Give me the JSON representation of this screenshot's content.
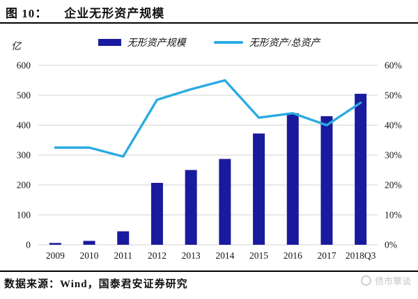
{
  "title": {
    "prefix": "图 10：",
    "text": "企业无形资产规模"
  },
  "unit_label": "亿",
  "source": "数据来源：Wind，国泰君安证券研究",
  "watermark": "债市覃谈",
  "colors": {
    "bar": "#1a1a9e",
    "line": "#29abe2",
    "grid": "#d9d9d9",
    "text": "#141414",
    "watermark": "#c6c6c6"
  },
  "chart_data": {
    "type": "bar",
    "title": "企业无形资产规模",
    "categories": [
      "2009",
      "2010",
      "2011",
      "2012",
      "2013",
      "2014",
      "2015",
      "2016",
      "2017",
      "2018Q3"
    ],
    "series": [
      {
        "name": "无形资产规模",
        "type": "bar",
        "axis": "left",
        "unit": "亿",
        "values": [
          6,
          13,
          45,
          207,
          250,
          287,
          372,
          440,
          430,
          505
        ]
      },
      {
        "name": "无形资产/总资产",
        "type": "line",
        "axis": "right",
        "unit": "%",
        "values": [
          32.5,
          32.5,
          29.5,
          48.5,
          52,
          55,
          42.5,
          44,
          40,
          47.5
        ]
      }
    ],
    "left_axis": {
      "label": "亿",
      "min": 0,
      "max": 600,
      "ticks": [
        "600",
        "500",
        "400",
        "300",
        "200",
        "100",
        "0"
      ]
    },
    "right_axis": {
      "label": "",
      "min": 0,
      "max": 60,
      "ticks": [
        "60%",
        "50%",
        "40%",
        "30%",
        "20%",
        "10%",
        "0%"
      ]
    },
    "grid": true,
    "legend_position": "top"
  }
}
